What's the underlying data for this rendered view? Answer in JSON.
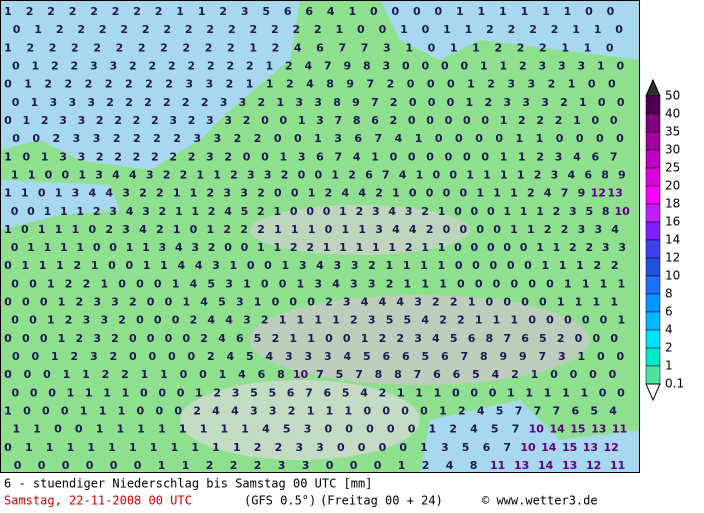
{
  "grid": {
    "rows": [
      [
        1,
        2,
        2,
        2,
        2,
        2,
        2,
        2,
        1,
        1,
        2,
        3,
        5,
        6,
        6,
        4,
        1,
        0,
        0,
        0,
        0,
        1,
        1,
        1,
        1,
        1,
        1,
        0,
        0
      ],
      [
        0,
        1,
        2,
        2,
        2,
        2,
        2,
        2,
        2,
        2,
        2,
        2,
        2,
        2,
        2,
        1,
        0,
        0,
        1,
        0,
        1,
        1,
        2,
        2,
        2,
        2,
        1,
        1,
        0
      ],
      [
        1,
        2,
        2,
        2,
        2,
        2,
        2,
        2,
        2,
        2,
        2,
        1,
        2,
        4,
        6,
        7,
        7,
        3,
        1,
        0,
        1,
        1,
        2,
        2,
        2,
        1,
        1,
        0
      ],
      [
        0,
        1,
        2,
        2,
        3,
        3,
        2,
        2,
        2,
        2,
        2,
        2,
        2,
        1,
        2,
        4,
        7,
        9,
        8,
        3,
        0,
        0,
        0,
        0,
        1,
        1,
        2,
        3,
        3,
        3,
        1,
        0
      ],
      [
        0,
        1,
        2,
        2,
        2,
        2,
        2,
        2,
        2,
        3,
        3,
        2,
        1,
        1,
        2,
        4,
        8,
        9,
        7,
        2,
        0,
        0,
        0,
        1,
        2,
        3,
        3,
        2,
        1,
        0,
        0
      ],
      [
        0,
        1,
        3,
        3,
        3,
        2,
        2,
        2,
        2,
        2,
        2,
        3,
        3,
        2,
        1,
        3,
        3,
        8,
        9,
        7,
        2,
        0,
        0,
        0,
        1,
        2,
        3,
        3,
        3,
        2,
        1,
        0,
        0
      ],
      [
        0,
        1,
        2,
        3,
        3,
        2,
        2,
        2,
        2,
        3,
        2,
        3,
        3,
        2,
        0,
        0,
        1,
        3,
        7,
        8,
        6,
        2,
        0,
        0,
        0,
        0,
        0,
        1,
        2,
        2,
        2,
        1,
        0,
        0
      ],
      [
        0,
        0,
        2,
        3,
        3,
        2,
        2,
        2,
        2,
        3,
        3,
        2,
        2,
        0,
        0,
        1,
        3,
        6,
        7,
        4,
        1,
        0,
        0,
        0,
        0,
        1,
        1,
        0,
        0,
        0,
        0
      ],
      [
        1,
        0,
        1,
        3,
        3,
        2,
        2,
        2,
        2,
        2,
        2,
        3,
        2,
        0,
        0,
        1,
        3,
        6,
        7,
        4,
        1,
        0,
        0,
        0,
        0,
        0,
        0,
        1,
        1,
        2,
        3,
        4,
        6,
        7
      ],
      [
        1,
        1,
        0,
        0,
        1,
        3,
        4,
        4,
        3,
        2,
        2,
        1,
        1,
        2,
        3,
        3,
        2,
        0,
        0,
        1,
        2,
        6,
        7,
        4,
        1,
        0,
        0,
        1,
        1,
        1,
        1,
        2,
        3,
        4,
        6,
        8,
        9
      ],
      [
        1,
        1,
        0,
        1,
        3,
        4,
        4,
        3,
        2,
        2,
        1,
        1,
        2,
        3,
        3,
        2,
        0,
        0,
        1,
        2,
        4,
        4,
        2,
        1,
        0,
        0,
        0,
        0,
        1,
        1,
        1,
        2,
        4,
        7,
        9,
        12,
        13
      ],
      [
        0,
        0,
        1,
        1,
        1,
        2,
        3,
        4,
        3,
        2,
        1,
        1,
        2,
        4,
        5,
        2,
        1,
        0,
        0,
        0,
        1,
        2,
        3,
        4,
        3,
        2,
        1,
        0,
        0,
        0,
        1,
        1,
        1,
        2,
        3,
        5,
        8,
        10
      ],
      [
        1,
        0,
        1,
        1,
        1,
        0,
        2,
        3,
        4,
        2,
        1,
        0,
        1,
        2,
        2,
        2,
        1,
        1,
        1,
        0,
        1,
        1,
        3,
        4,
        4,
        2,
        0,
        0,
        0,
        0,
        1,
        1,
        2,
        2,
        3,
        3,
        4
      ],
      [
        0,
        1,
        1,
        1,
        1,
        0,
        0,
        1,
        1,
        3,
        4,
        3,
        2,
        0,
        0,
        1,
        1,
        2,
        2,
        1,
        1,
        1,
        1,
        1,
        2,
        1,
        1,
        0,
        0,
        0,
        0,
        0,
        1,
        1,
        2,
        2,
        3,
        3
      ],
      [
        0,
        1,
        1,
        1,
        2,
        1,
        0,
        0,
        1,
        1,
        4,
        4,
        3,
        1,
        0,
        0,
        1,
        3,
        4,
        3,
        3,
        2,
        1,
        1,
        1,
        1,
        0,
        0,
        0,
        0,
        0,
        1,
        1,
        1,
        2,
        2
      ],
      [
        0,
        0,
        1,
        2,
        2,
        1,
        0,
        0,
        0,
        1,
        4,
        5,
        3,
        1,
        0,
        0,
        1,
        3,
        4,
        3,
        3,
        2,
        1,
        1,
        1,
        0,
        0,
        0,
        0,
        0,
        0,
        1,
        1,
        1,
        1
      ],
      [
        0,
        0,
        0,
        1,
        2,
        3,
        3,
        2,
        0,
        0,
        1,
        4,
        5,
        3,
        1,
        0,
        0,
        0,
        2,
        3,
        4,
        4,
        4,
        3,
        2,
        2,
        1,
        0,
        0,
        0,
        0,
        1,
        1,
        1,
        1
      ],
      [
        0,
        0,
        1,
        2,
        3,
        3,
        2,
        0,
        0,
        0,
        2,
        4,
        4,
        3,
        2,
        1,
        1,
        1,
        1,
        2,
        3,
        5,
        5,
        4,
        2,
        2,
        1,
        1,
        1,
        0,
        0,
        0,
        0,
        0,
        1
      ],
      [
        0,
        0,
        0,
        1,
        2,
        3,
        2,
        0,
        0,
        0,
        0,
        2,
        4,
        6,
        5,
        2,
        1,
        1,
        0,
        0,
        1,
        2,
        2,
        3,
        4,
        5,
        6,
        8,
        7,
        6,
        5,
        2,
        0,
        0,
        0
      ],
      [
        0,
        0,
        1,
        2,
        3,
        2,
        0,
        0,
        0,
        0,
        2,
        4,
        5,
        4,
        3,
        3,
        3,
        4,
        5,
        6,
        6,
        5,
        6,
        7,
        8,
        9,
        9,
        7,
        3,
        1,
        0,
        0
      ],
      [
        0,
        0,
        0,
        1,
        1,
        2,
        2,
        1,
        1,
        0,
        0,
        1,
        4,
        6,
        8,
        10,
        7,
        5,
        7,
        8,
        8,
        7,
        6,
        6,
        5,
        4,
        2,
        1,
        0,
        0,
        0,
        0
      ],
      [
        0,
        0,
        0,
        1,
        1,
        1,
        1,
        0,
        0,
        0,
        1,
        2,
        3,
        5,
        5,
        6,
        7,
        6,
        5,
        4,
        2,
        1,
        1,
        1,
        0,
        0,
        0,
        1,
        1,
        1,
        1,
        1,
        0,
        0
      ],
      [
        1,
        0,
        0,
        0,
        1,
        1,
        1,
        0,
        0,
        0,
        2,
        4,
        4,
        3,
        3,
        2,
        1,
        1,
        1,
        0,
        0,
        0,
        0,
        1,
        2,
        4,
        5,
        7,
        7,
        7,
        6,
        5,
        4
      ],
      [
        1,
        1,
        0,
        0,
        1,
        1,
        1,
        1,
        1,
        1,
        1,
        1,
        4,
        5,
        3,
        0,
        0,
        0,
        0,
        0,
        1,
        2,
        4,
        5,
        7,
        10,
        14,
        15,
        13,
        11
      ],
      [
        0,
        1,
        1,
        1,
        1,
        1,
        1,
        1,
        1,
        1,
        1,
        1,
        2,
        2,
        3,
        3,
        0,
        0,
        0,
        0,
        1,
        3,
        5,
        6,
        7,
        10,
        14,
        15,
        13,
        12
      ],
      [
        0,
        0,
        0,
        0,
        0,
        0,
        1,
        1,
        2,
        2,
        2,
        3,
        3,
        0,
        0,
        0,
        1,
        2,
        4,
        8,
        11,
        13,
        14,
        13,
        12,
        11
      ]
    ]
  },
  "legend": {
    "levels": [
      50,
      40,
      35,
      30,
      25,
      20,
      18,
      16,
      14,
      12,
      10,
      8,
      6,
      4,
      2,
      1,
      0.1
    ],
    "colors": [
      "#303030",
      "#500050",
      "#800080",
      "#a000a0",
      "#c000c0",
      "#e000e0",
      "#ff00ff",
      "#c020ff",
      "#8020ff",
      "#4040f0",
      "#2050e0",
      "#2070ff",
      "#0098ff",
      "#00b8ff",
      "#00e0ff",
      "#00e8c8",
      "#50e0a0"
    ]
  },
  "footer": {
    "title": "6 - stuendiger Niederschlag bis Samstag 00 UTC [mm]",
    "run": "Samstag, 22-11-2008  00 UTC",
    "model": "(GFS 0.5°)",
    "step": "(Freitag 00 + 24)",
    "credit": "© www.wetter3.de"
  }
}
